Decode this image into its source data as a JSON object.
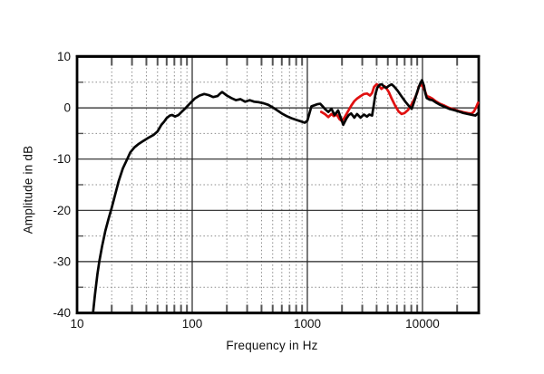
{
  "figure": {
    "background": "#ffffff",
    "text_color": "#111111",
    "frame_color": "#000000",
    "major_grid_color": "#222222",
    "minor_grid_color": "#8a8a8a",
    "tick_color": "#555555"
  },
  "chart_data": {
    "type": "line",
    "title": "",
    "xlabel": "Frequency in Hz",
    "ylabel": "Amplitude in dB",
    "x_scale": "log",
    "xlim": [
      10,
      30800
    ],
    "ylim": [
      -40,
      10
    ],
    "grid": "major solid every 10 dB and each decade; dotted minor lines every 5 dB and at log sub-decade frequencies; inward tick marks on all four frame edges",
    "legend_position": "none",
    "x_ticks_labeled": [
      10,
      100,
      1000,
      10000
    ],
    "x_tick_labels": [
      "10",
      "100",
      "1000",
      "10000"
    ],
    "y_ticks_labeled": [
      10,
      0,
      -10,
      -20,
      -30,
      -40
    ],
    "y_tick_labels": [
      "10",
      "0",
      "-10",
      "-20",
      "-30",
      "-40"
    ],
    "y_minor_ticks": [
      5,
      -5,
      -15,
      -25,
      -35
    ],
    "x_minor_ticks": [
      20,
      30,
      40,
      50,
      60,
      70,
      80,
      90,
      200,
      300,
      400,
      500,
      600,
      700,
      800,
      900,
      2000,
      3000,
      4000,
      5000,
      6000,
      7000,
      8000,
      9000,
      20000
    ],
    "series": [
      {
        "name": "red-trace",
        "color": "#e01010",
        "points": [
          [
            1320,
            -0.8
          ],
          [
            1420,
            -1.2
          ],
          [
            1520,
            -1.8
          ],
          [
            1620,
            -1.2
          ],
          [
            1700,
            -1.6
          ],
          [
            1800,
            -1.3
          ],
          [
            1900,
            -2.2
          ],
          [
            2000,
            -2.6
          ],
          [
            2100,
            -1.9
          ],
          [
            2250,
            -0.7
          ],
          [
            2400,
            0.4
          ],
          [
            2560,
            1.3
          ],
          [
            2700,
            1.8
          ],
          [
            2900,
            2.3
          ],
          [
            3100,
            2.7
          ],
          [
            3300,
            2.8
          ],
          [
            3500,
            2.4
          ],
          [
            3650,
            2.9
          ],
          [
            3800,
            4.1
          ],
          [
            4000,
            4.6
          ],
          [
            4150,
            4.4
          ],
          [
            4400,
            3.7
          ],
          [
            4700,
            4.2
          ],
          [
            4900,
            3.7
          ],
          [
            5100,
            3.1
          ],
          [
            5400,
            1.8
          ],
          [
            5800,
            0.4
          ],
          [
            6200,
            -0.7
          ],
          [
            6600,
            -1.2
          ],
          [
            7000,
            -1.0
          ],
          [
            7500,
            -0.4
          ],
          [
            8000,
            0.6
          ],
          [
            8500,
            1.7
          ],
          [
            9000,
            2.9
          ],
          [
            9300,
            4.2
          ],
          [
            9700,
            4.5
          ],
          [
            10100,
            4.1
          ],
          [
            10500,
            3.3
          ],
          [
            10900,
            2.3
          ],
          [
            11500,
            2.1
          ],
          [
            12200,
            1.8
          ],
          [
            13000,
            1.3
          ],
          [
            14200,
            0.8
          ],
          [
            15600,
            0.4
          ],
          [
            17000,
            0.0
          ],
          [
            18800,
            -0.3
          ],
          [
            20600,
            -0.6
          ],
          [
            22700,
            -0.85
          ],
          [
            24900,
            -1.05
          ],
          [
            26800,
            -1.1
          ],
          [
            28000,
            -0.7
          ],
          [
            29200,
            0.1
          ],
          [
            30400,
            1.0
          ]
        ]
      },
      {
        "name": "black-trace",
        "color": "#050505",
        "points": [
          [
            13.6,
            -41
          ],
          [
            14.3,
            -36.5
          ],
          [
            15.0,
            -32.5
          ],
          [
            15.6,
            -30
          ],
          [
            16.5,
            -27
          ],
          [
            17.6,
            -24
          ],
          [
            18.8,
            -21.6
          ],
          [
            20,
            -19.5
          ],
          [
            21.5,
            -16.8
          ],
          [
            23,
            -14.3
          ],
          [
            25,
            -11.8
          ],
          [
            27,
            -10.2
          ],
          [
            29,
            -8.7
          ],
          [
            31.5,
            -7.7
          ],
          [
            34,
            -7.1
          ],
          [
            38,
            -6.4
          ],
          [
            42,
            -5.8
          ],
          [
            46,
            -5.3
          ],
          [
            50,
            -4.6
          ],
          [
            54,
            -3.3
          ],
          [
            57,
            -2.7
          ],
          [
            60,
            -2.0
          ],
          [
            64,
            -1.5
          ],
          [
            67,
            -1.4
          ],
          [
            71,
            -1.7
          ],
          [
            76,
            -1.4
          ],
          [
            80,
            -0.9
          ],
          [
            88,
            0.0
          ],
          [
            97,
            1.0
          ],
          [
            105,
            1.8
          ],
          [
            116,
            2.4
          ],
          [
            127,
            2.7
          ],
          [
            139,
            2.5
          ],
          [
            152,
            2.1
          ],
          [
            166,
            2.3
          ],
          [
            175,
            2.8
          ],
          [
            182,
            3.1
          ],
          [
            200,
            2.4
          ],
          [
            219,
            1.9
          ],
          [
            240,
            1.5
          ],
          [
            263,
            1.7
          ],
          [
            288,
            1.2
          ],
          [
            316,
            1.5
          ],
          [
            346,
            1.2
          ],
          [
            380,
            1.1
          ],
          [
            416,
            0.9
          ],
          [
            456,
            0.6
          ],
          [
            500,
            0.1
          ],
          [
            548,
            -0.5
          ],
          [
            600,
            -1.1
          ],
          [
            660,
            -1.6
          ],
          [
            722,
            -2.0
          ],
          [
            790,
            -2.3
          ],
          [
            868,
            -2.6
          ],
          [
            950,
            -2.9
          ],
          [
            1000,
            -2.5
          ],
          [
            1040,
            -1.2
          ],
          [
            1085,
            0.3
          ],
          [
            1150,
            0.5
          ],
          [
            1220,
            0.7
          ],
          [
            1295,
            0.8
          ],
          [
            1360,
            0.3
          ],
          [
            1420,
            -0.2
          ],
          [
            1520,
            -0.8
          ],
          [
            1620,
            -0.2
          ],
          [
            1725,
            -1.4
          ],
          [
            1850,
            -0.5
          ],
          [
            1950,
            -1.9
          ],
          [
            2050,
            -3.3
          ],
          [
            2180,
            -2.1
          ],
          [
            2290,
            -1.4
          ],
          [
            2400,
            -1.1
          ],
          [
            2560,
            -1.9
          ],
          [
            2700,
            -1.2
          ],
          [
            2900,
            -1.9
          ],
          [
            3100,
            -1.3
          ],
          [
            3300,
            -1.7
          ],
          [
            3450,
            -1.3
          ],
          [
            3650,
            -1.5
          ],
          [
            3780,
            0.6
          ],
          [
            3900,
            2.6
          ],
          [
            4050,
            3.9
          ],
          [
            4250,
            4.5
          ],
          [
            4450,
            4.6
          ],
          [
            4650,
            4.1
          ],
          [
            4850,
            3.9
          ],
          [
            5100,
            4.3
          ],
          [
            5400,
            4.6
          ],
          [
            5700,
            4.1
          ],
          [
            6100,
            3.3
          ],
          [
            6600,
            2.2
          ],
          [
            7100,
            1.2
          ],
          [
            7600,
            0.4
          ],
          [
            8060,
            -0.2
          ],
          [
            8500,
            1.3
          ],
          [
            9000,
            3.1
          ],
          [
            9500,
            4.6
          ],
          [
            9900,
            5.4
          ],
          [
            10300,
            4.3
          ],
          [
            10600,
            2.8
          ],
          [
            10900,
            1.9
          ],
          [
            11500,
            1.6
          ],
          [
            12200,
            1.5
          ],
          [
            13000,
            1.1
          ],
          [
            14200,
            0.6
          ],
          [
            15600,
            0.2
          ],
          [
            17100,
            -0.2
          ],
          [
            18800,
            -0.45
          ],
          [
            20600,
            -0.7
          ],
          [
            22700,
            -1.0
          ],
          [
            24900,
            -1.2
          ],
          [
            27400,
            -1.4
          ],
          [
            28800,
            -1.5
          ],
          [
            30200,
            -1.1
          ]
        ]
      }
    ]
  }
}
